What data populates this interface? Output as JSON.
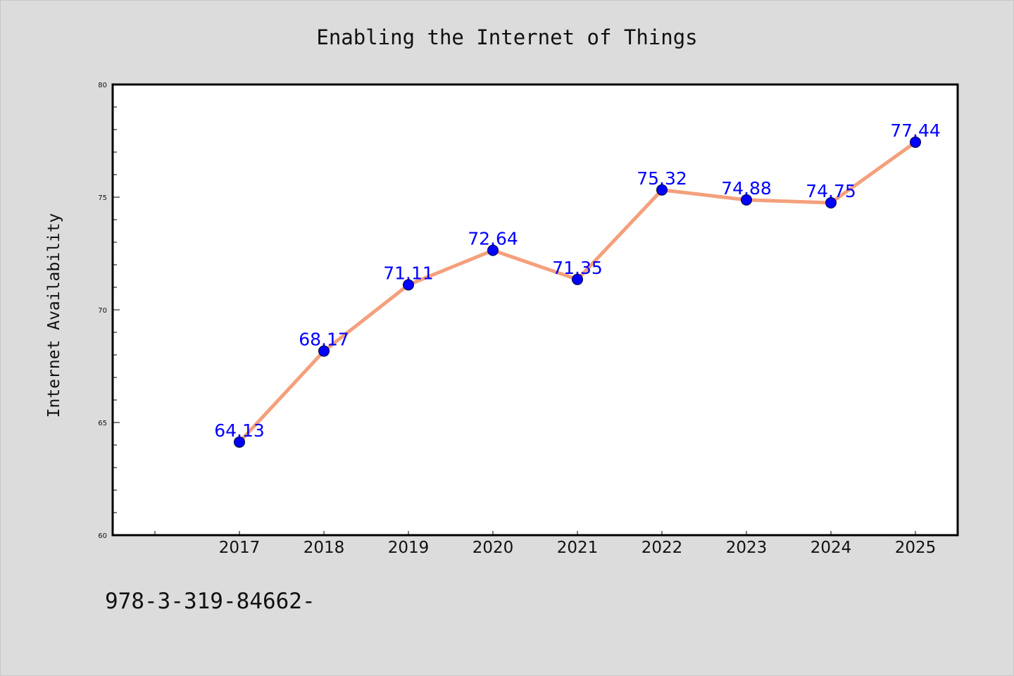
{
  "chart_data": {
    "type": "line",
    "title": "Enabling the Internet of Things",
    "xlabel": "",
    "ylabel": "Internet Availability",
    "categories": [
      "2017",
      "2018",
      "2019",
      "2020",
      "2021",
      "2022",
      "2023",
      "2024",
      "2025"
    ],
    "series": [
      {
        "values": [
          64.13,
          68.17,
          71.11,
          72.64,
          71.35,
          75.32,
          74.88,
          74.75,
          77.44
        ],
        "data_labels": [
          "64.13",
          "68.17",
          "71.11",
          "72.64",
          "71.35",
          "75.32",
          "74.88",
          "74.75",
          "77.44"
        ]
      }
    ],
    "ylim": [
      60,
      80
    ],
    "y_ticks": [
      "60",
      "65",
      "70",
      "75",
      "80"
    ],
    "grid": false,
    "legend": "none",
    "colors": {
      "line": "#f4a07c",
      "marker": "#0000ff",
      "label": "#0000ff",
      "background": "#dcdcdc",
      "plot_background": "#ffffff"
    }
  },
  "footnote": "978-3-319-84662-"
}
